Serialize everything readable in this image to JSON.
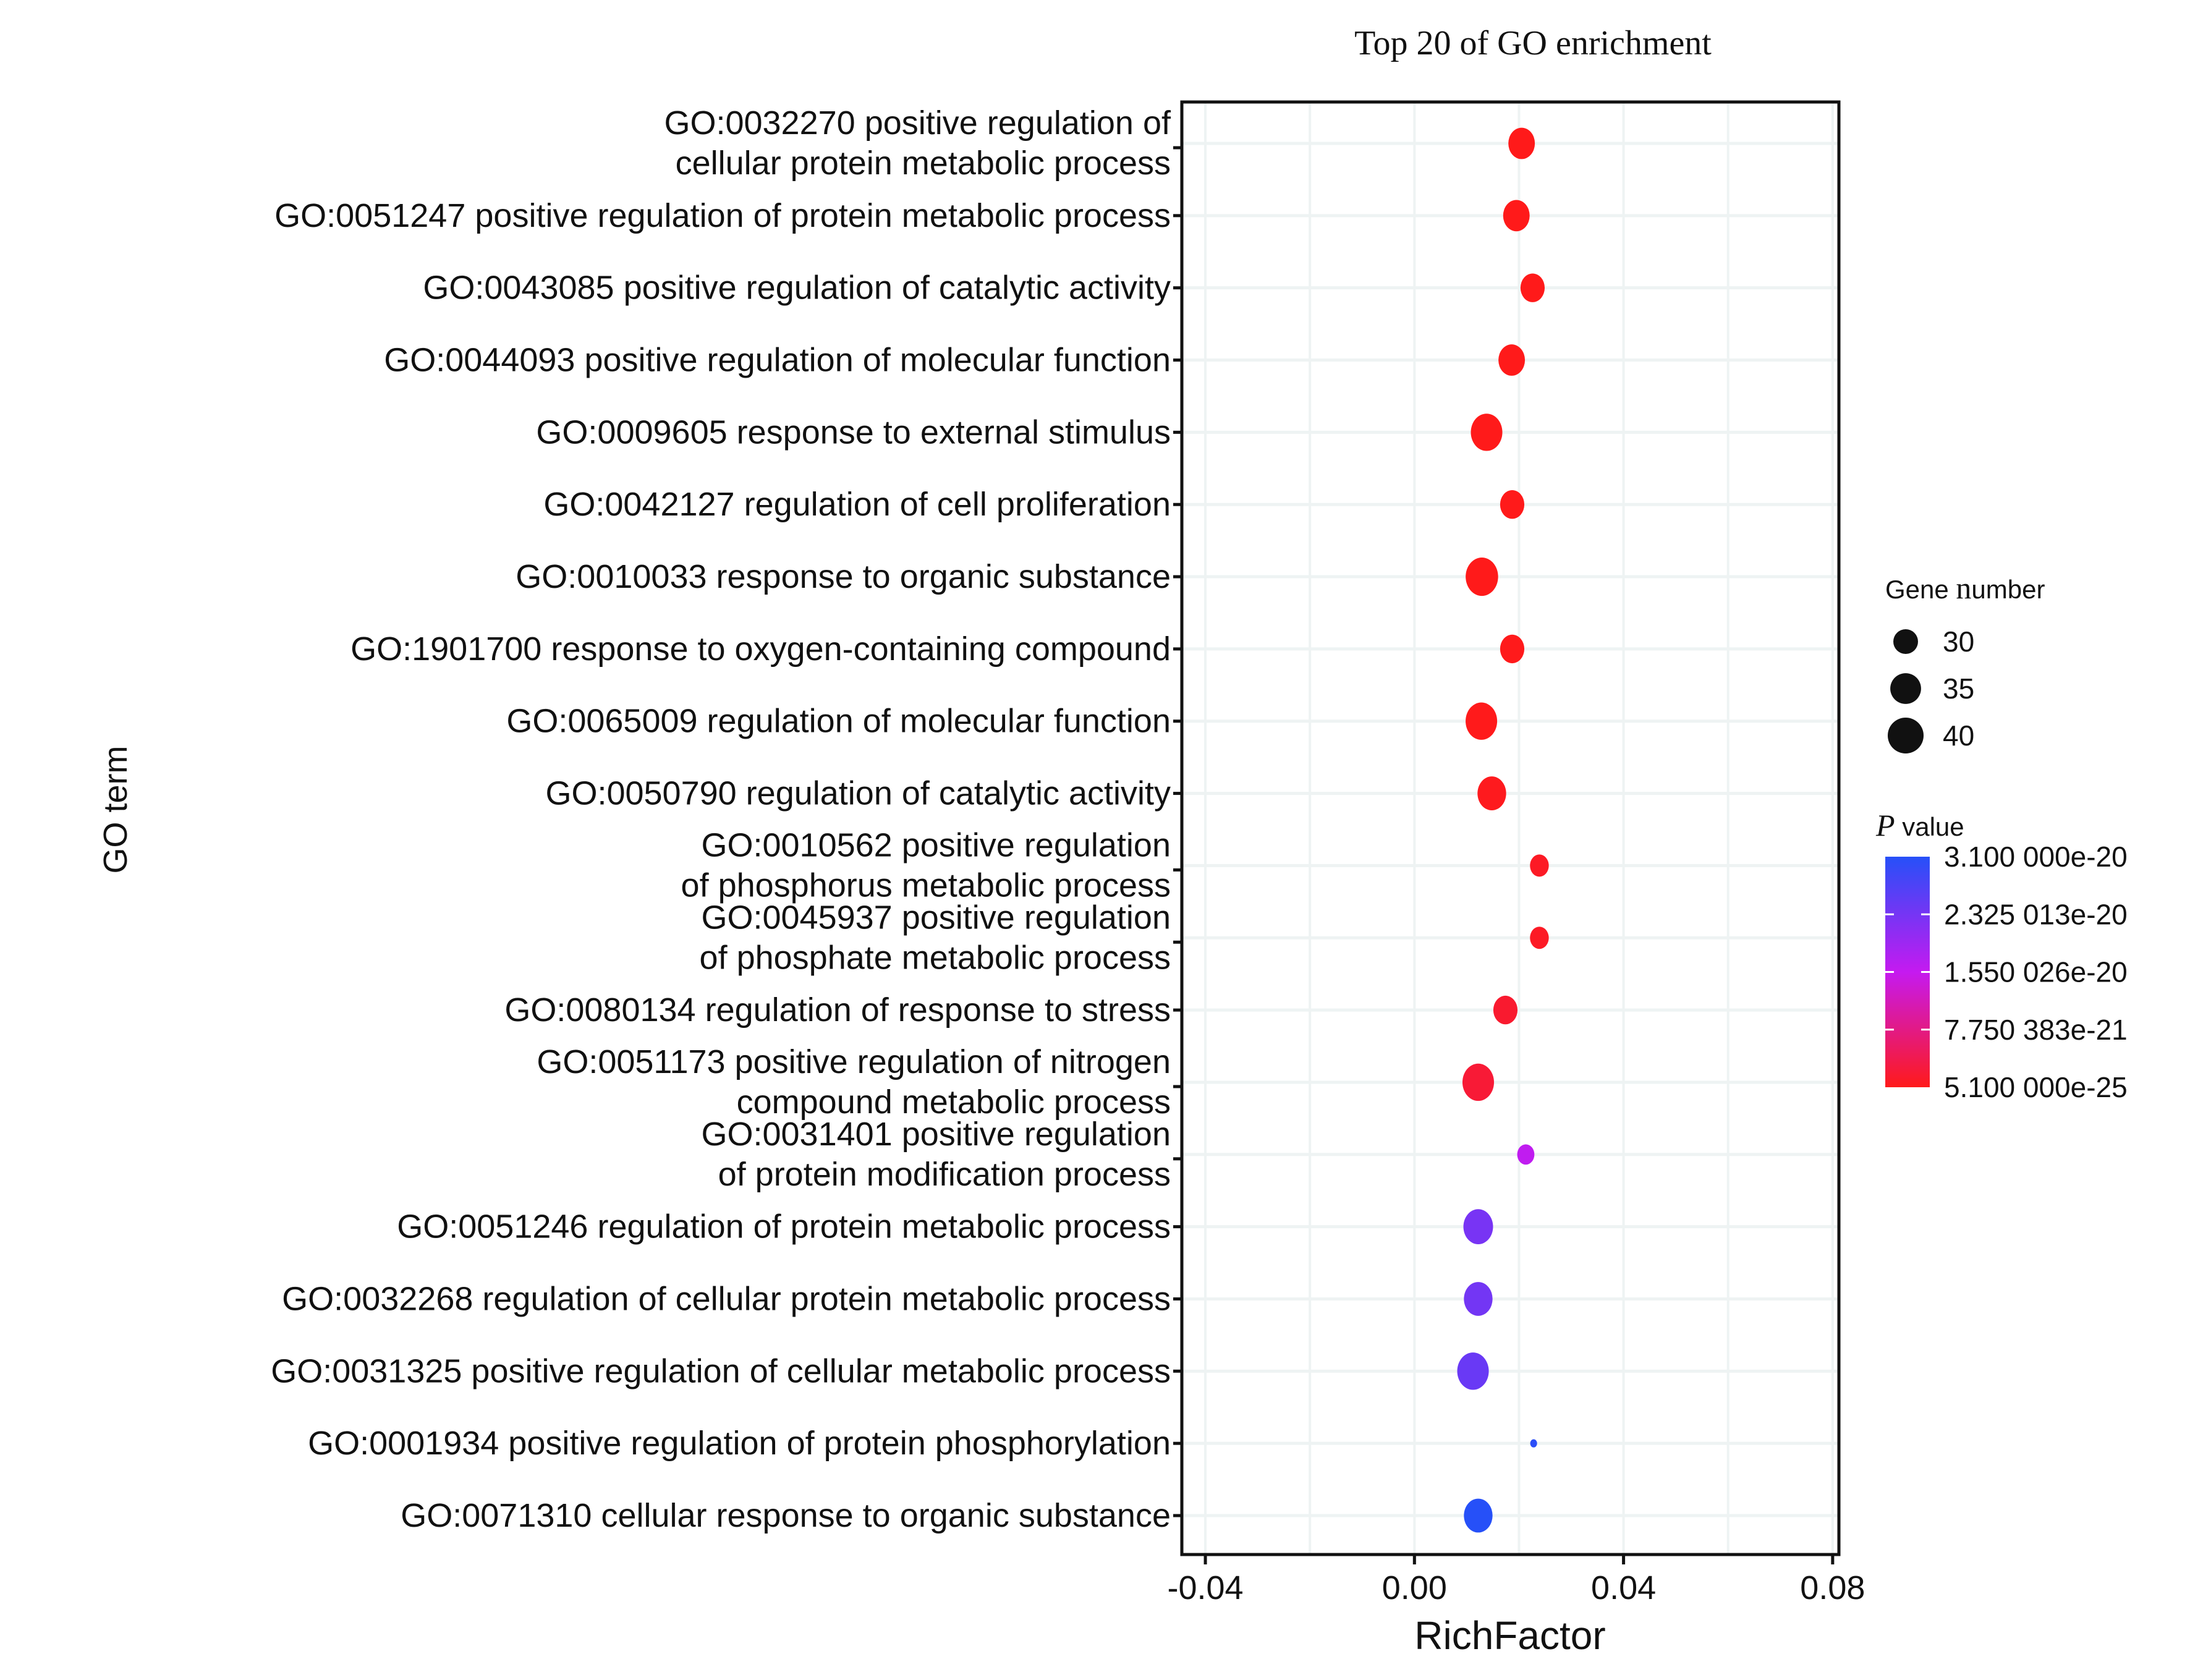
{
  "chart_data": {
    "type": "scatter",
    "subtype": "bubble",
    "title": "Top 20 of GO enrichment",
    "xlabel": "RichFactor",
    "ylabel": "GO term",
    "xlim": [
      -0.0445,
      0.0812
    ],
    "xticks": [
      -0.04,
      0.0,
      0.04,
      0.08
    ],
    "xtick_labels": [
      "-0.04",
      "0.00",
      "0.04",
      "0.08"
    ],
    "grid": true,
    "size_legend": {
      "title_prefix": "Gene ",
      "title_n": "n",
      "title_suffix": "umber",
      "values": [
        30,
        35,
        40
      ],
      "labels": [
        "30",
        "35",
        "40"
      ],
      "placement": "right"
    },
    "color_legend": {
      "title_p": "P",
      "title_rest": " value",
      "min": 5.1e-25,
      "max": 3.1e-20,
      "low_color": "#FF1A1A",
      "mid_color": "#C51AF0",
      "high_color": "#2650F8",
      "tick_labels": [
        "3.100 000e-20",
        "2.325 013e-20",
        "1.550 026e-20",
        "7.750 383e-21",
        "5.100 000e-25"
      ],
      "tick_values": [
        3.1e-20,
        2.325013e-20,
        1.550026e-20,
        7.750383e-21,
        5.1e-25
      ],
      "placement": "right"
    },
    "points": [
      {
        "term": [
          "GO:0032270 positive regulation of",
          "cellular protein metabolic process"
        ],
        "rich_factor": 0.0205,
        "gene_number": 33,
        "p_value": 5.1e-25
      },
      {
        "term": [
          "GO:0051247 positive regulation of protein metabolic process"
        ],
        "rich_factor": 0.0195,
        "gene_number": 33,
        "p_value": 6e-25
      },
      {
        "term": [
          "GO:0043085 positive regulation of catalytic activity"
        ],
        "rich_factor": 0.0226,
        "gene_number": 31,
        "p_value": 8e-25
      },
      {
        "term": [
          "GO:0044093 positive regulation of molecular function"
        ],
        "rich_factor": 0.0186,
        "gene_number": 33,
        "p_value": 1e-24
      },
      {
        "term": [
          "GO:0009605 response to external stimulus"
        ],
        "rich_factor": 0.0138,
        "gene_number": 38,
        "p_value": 2e-24
      },
      {
        "term": [
          "GO:0042127 regulation of cell proliferation"
        ],
        "rich_factor": 0.0187,
        "gene_number": 31,
        "p_value": 5e-24
      },
      {
        "term": [
          "GO:0010033 response to organic substance"
        ],
        "rich_factor": 0.0129,
        "gene_number": 39,
        "p_value": 1e-23
      },
      {
        "term": [
          "GO:1901700 response to oxygen-containing compound"
        ],
        "rich_factor": 0.0187,
        "gene_number": 31,
        "p_value": 5e-23
      },
      {
        "term": [
          "GO:0065009 regulation of molecular function"
        ],
        "rich_factor": 0.0128,
        "gene_number": 38,
        "p_value": 1e-22
      },
      {
        "term": [
          "GO:0050790 regulation of catalytic activity"
        ],
        "rich_factor": 0.0148,
        "gene_number": 35,
        "p_value": 3e-22
      },
      {
        "term": [
          "GO:0010562 positive regulation",
          "of phosphorus metabolic process"
        ],
        "rich_factor": 0.0239,
        "gene_number": 27,
        "p_value": 8e-22
      },
      {
        "term": [
          "GO:0045937 positive regulation",
          "of phosphate metabolic process"
        ],
        "rich_factor": 0.0239,
        "gene_number": 27,
        "p_value": 8e-22
      },
      {
        "term": [
          "GO:0080134 regulation of response to stress"
        ],
        "rich_factor": 0.0174,
        "gene_number": 31,
        "p_value": 1.5e-21
      },
      {
        "term": [
          "GO:0051173 positive regulation of nitrogen",
          "compound metabolic process"
        ],
        "rich_factor": 0.0122,
        "gene_number": 38,
        "p_value": 2e-21
      },
      {
        "term": [
          "GO:0031401 positive regulation",
          "of protein modification process"
        ],
        "rich_factor": 0.0213,
        "gene_number": 26,
        "p_value": 1.6e-20
      },
      {
        "term": [
          "GO:0051246 regulation of protein metabolic process"
        ],
        "rich_factor": 0.0122,
        "gene_number": 36,
        "p_value": 2.3e-20
      },
      {
        "term": [
          "GO:0032268 regulation of cellular protein metabolic process"
        ],
        "rich_factor": 0.0122,
        "gene_number": 35,
        "p_value": 2.35e-20
      },
      {
        "term": [
          "GO:0031325 positive regulation of cellular metabolic process"
        ],
        "rich_factor": 0.0112,
        "gene_number": 38,
        "p_value": 2.45e-20
      },
      {
        "term": [
          "GO:0001934 positive regulation of protein phosphorylation"
        ],
        "rich_factor": 0.0228,
        "gene_number": 20,
        "p_value": 3.05e-20
      },
      {
        "term": [
          "GO:0071310 cellular response to organic substance"
        ],
        "rich_factor": 0.0122,
        "gene_number": 35,
        "p_value": 3.1e-20
      }
    ]
  }
}
